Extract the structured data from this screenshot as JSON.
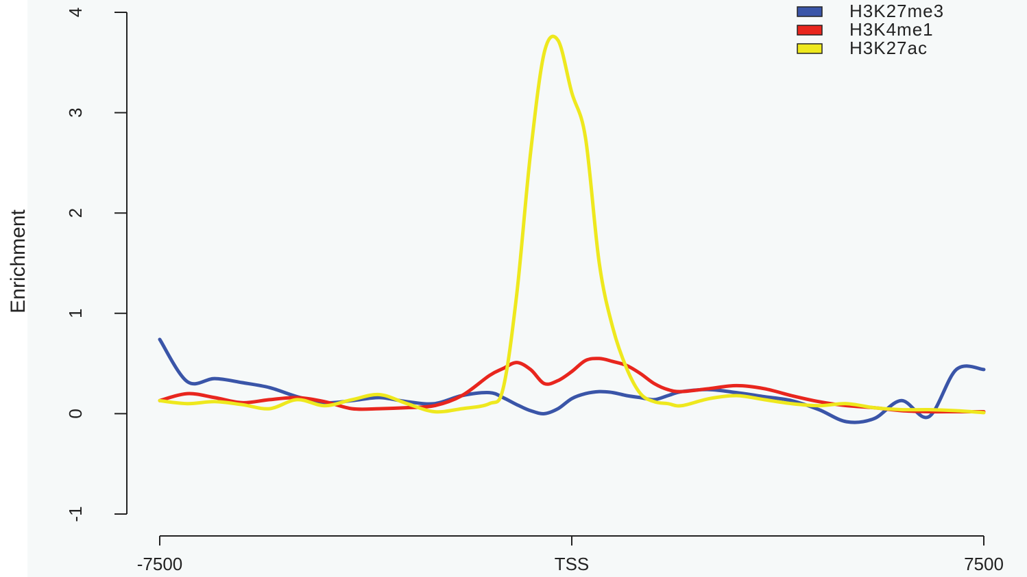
{
  "chart_data": {
    "type": "line",
    "title": "",
    "xlabel": "",
    "ylabel": "Enrichment",
    "xlim": [
      -7500,
      7500
    ],
    "ylim": [
      -1,
      4
    ],
    "x_ticks": [
      {
        "value": -7500,
        "label": "-7500"
      },
      {
        "value": 0,
        "label": "TSS"
      },
      {
        "value": 7500,
        "label": "7500"
      }
    ],
    "y_ticks": [
      {
        "value": -1,
        "label": "-1"
      },
      {
        "value": 0,
        "label": "0"
      },
      {
        "value": 1,
        "label": "1"
      },
      {
        "value": 2,
        "label": "2"
      },
      {
        "value": 3,
        "label": "3"
      },
      {
        "value": 4,
        "label": "4"
      }
    ],
    "grid": false,
    "legend_position": "top-right",
    "x": [
      -7500,
      -7000,
      -6500,
      -6000,
      -5500,
      -5000,
      -4500,
      -4000,
      -3500,
      -3000,
      -2500,
      -2000,
      -1500,
      -1250,
      -1000,
      -750,
      -500,
      -250,
      0,
      250,
      500,
      750,
      1000,
      1250,
      1500,
      1750,
      2000,
      2500,
      3000,
      3500,
      4000,
      4500,
      5000,
      5500,
      6000,
      6500,
      7000,
      7500
    ],
    "series": [
      {
        "name": "H3K27me3",
        "color": "#3a55a8",
        "values": [
          0.74,
          0.32,
          0.35,
          0.31,
          0.26,
          0.17,
          0.11,
          0.13,
          0.16,
          0.12,
          0.1,
          0.18,
          0.21,
          0.16,
          0.09,
          0.03,
          0.0,
          0.05,
          0.15,
          0.2,
          0.22,
          0.21,
          0.18,
          0.16,
          0.14,
          0.18,
          0.22,
          0.24,
          0.21,
          0.17,
          0.13,
          0.04,
          -0.08,
          -0.05,
          0.13,
          -0.03,
          0.44,
          0.44
        ]
      },
      {
        "name": "H3K4me1",
        "color": "#e8261e",
        "values": [
          0.13,
          0.2,
          0.16,
          0.11,
          0.14,
          0.16,
          0.12,
          0.05,
          0.05,
          0.06,
          0.08,
          0.18,
          0.38,
          0.45,
          0.51,
          0.44,
          0.3,
          0.33,
          0.42,
          0.53,
          0.55,
          0.52,
          0.48,
          0.4,
          0.3,
          0.24,
          0.22,
          0.25,
          0.28,
          0.25,
          0.18,
          0.12,
          0.08,
          0.06,
          0.03,
          0.02,
          0.02,
          0.02
        ]
      },
      {
        "name": "H3K27ac",
        "color": "#eee81e",
        "values": [
          0.13,
          0.1,
          0.12,
          0.09,
          0.05,
          0.14,
          0.08,
          0.14,
          0.19,
          0.1,
          0.02,
          0.05,
          0.1,
          0.25,
          1.2,
          2.6,
          3.6,
          3.72,
          3.2,
          2.75,
          1.5,
          0.85,
          0.45,
          0.2,
          0.12,
          0.1,
          0.08,
          0.15,
          0.18,
          0.14,
          0.1,
          0.08,
          0.1,
          0.06,
          0.04,
          0.04,
          0.03,
          0.01
        ]
      }
    ]
  }
}
